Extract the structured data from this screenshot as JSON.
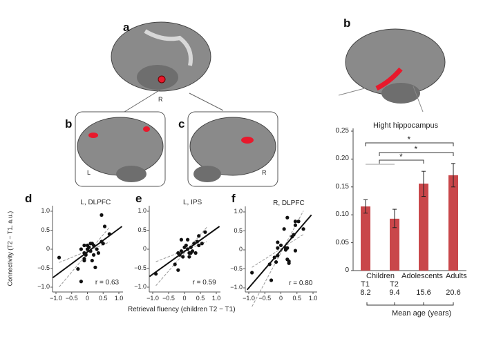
{
  "panel_labels": {
    "a": "a",
    "b": "b",
    "c": "c",
    "d": "d",
    "e": "e",
    "f": "f",
    "b_right": "b"
  },
  "brain_labels": {
    "a_side": "R",
    "b_side": "L",
    "c_side": "R"
  },
  "colors": {
    "bar": "#c9474a",
    "activation": "#e8192c",
    "brain": "#8a8a8a"
  },
  "shared_ylabel": "Connectivity (T2 − T1, a.u.)",
  "shared_xlabel": "Retrieval fluency (children T2 − T1)",
  "chart_data": [
    {
      "type": "scatter",
      "title": "L, DLPFC",
      "annotation": "r = 0.63",
      "xlim": [
        -1.0,
        1.0
      ],
      "ylim": [
        -1.0,
        1.0
      ],
      "xticks": [
        "−1.0",
        "−0.5",
        "0",
        "0.5",
        "1.0"
      ],
      "yticks": [
        "1.0",
        "0.5",
        "0",
        "−0.5",
        "−1.0"
      ],
      "points": [
        [
          -0.9,
          -0.22
        ],
        [
          -0.2,
          0.0
        ],
        [
          -0.1,
          0.1
        ],
        [
          0.0,
          0.1
        ],
        [
          0.05,
          0.05
        ],
        [
          -0.1,
          -0.1
        ],
        [
          -0.05,
          -0.15
        ],
        [
          0.15,
          0.15
        ],
        [
          0.2,
          0.1
        ],
        [
          0.1,
          -0.05
        ],
        [
          0.2,
          -0.15
        ],
        [
          -0.1,
          -0.3
        ],
        [
          -0.1,
          -0.25
        ],
        [
          0.15,
          -0.3
        ],
        [
          0.3,
          0.0
        ],
        [
          0.35,
          -0.1
        ],
        [
          0.45,
          0.2
        ],
        [
          0.5,
          0.15
        ],
        [
          0.45,
          0.9
        ],
        [
          0.55,
          0.6
        ],
        [
          0.7,
          0.4
        ],
        [
          -0.3,
          -0.52
        ],
        [
          -0.2,
          -0.85
        ],
        [
          0.25,
          -0.48
        ],
        [
          0.0,
          0.0
        ],
        [
          0.1,
          0.15
        ]
      ],
      "fit": [
        [
          -1.1,
          -0.75
        ],
        [
          1.1,
          0.6
        ]
      ]
    },
    {
      "type": "scatter",
      "title": "L, IPS",
      "annotation": "r = 0.59",
      "xlim": [
        -1.0,
        1.0
      ],
      "ylim": [
        -1.0,
        1.0
      ],
      "xticks": [
        "−1.0",
        "−0.5",
        "0",
        "0.5",
        "1.0"
      ],
      "yticks": [
        "1.0",
        "0.5",
        "0",
        "−0.5",
        "−1.0"
      ],
      "points": [
        [
          -0.9,
          -0.65
        ],
        [
          -0.3,
          -0.4
        ],
        [
          -0.2,
          -0.55
        ],
        [
          -0.2,
          -0.1
        ],
        [
          -0.15,
          -0.15
        ],
        [
          -0.1,
          0.25
        ],
        [
          -0.1,
          -0.05
        ],
        [
          0.0,
          0.05
        ],
        [
          0.05,
          0.1
        ],
        [
          0.1,
          0.25
        ],
        [
          0.1,
          0.0
        ],
        [
          0.15,
          -0.1
        ],
        [
          0.2,
          0.05
        ],
        [
          0.2,
          -0.1
        ],
        [
          0.25,
          -0.05
        ],
        [
          0.3,
          0.15
        ],
        [
          0.35,
          -0.1
        ],
        [
          0.4,
          0.2
        ],
        [
          0.45,
          0.35
        ],
        [
          0.45,
          0.1
        ],
        [
          0.55,
          0.15
        ],
        [
          0.65,
          0.45
        ],
        [
          0.15,
          -0.2
        ],
        [
          -0.05,
          -0.2
        ]
      ],
      "fit": [
        [
          -1.1,
          -0.72
        ],
        [
          1.1,
          0.6
        ]
      ]
    },
    {
      "type": "scatter",
      "title": "R, DLPFC",
      "annotation": "r = 0.80",
      "xlim": [
        -1.0,
        1.0
      ],
      "ylim": [
        -1.0,
        1.0
      ],
      "xticks": [
        "−1.0",
        "−0.5",
        "0",
        "0.5",
        "1.0"
      ],
      "yticks": [
        "1.0",
        "0.5",
        "0",
        "−0.5",
        "−1.0"
      ],
      "points": [
        [
          -0.9,
          -0.6
        ],
        [
          -0.35,
          -0.38
        ],
        [
          -0.3,
          -0.8
        ],
        [
          -0.2,
          -0.2
        ],
        [
          -0.15,
          -0.32
        ],
        [
          -0.1,
          -0.15
        ],
        [
          -0.1,
          0.05
        ],
        [
          -0.1,
          0.2
        ],
        [
          0.0,
          0.12
        ],
        [
          0.1,
          0.55
        ],
        [
          0.15,
          0.05
        ],
        [
          0.15,
          0.0
        ],
        [
          0.2,
          -0.25
        ],
        [
          0.25,
          -0.3
        ],
        [
          0.25,
          -0.35
        ],
        [
          0.2,
          0.85
        ],
        [
          0.35,
          0.35
        ],
        [
          0.4,
          0.4
        ],
        [
          0.45,
          0.65
        ],
        [
          0.45,
          0.75
        ],
        [
          0.45,
          -0.02
        ],
        [
          0.55,
          0.75
        ],
        [
          0.7,
          0.55
        ],
        [
          0.2,
          0.05
        ]
      ],
      "fit": [
        [
          -1.05,
          -1.05
        ],
        [
          0.95,
          0.92
        ]
      ]
    },
    {
      "type": "bar",
      "title": "Hight hippocampus",
      "ylim": [
        0,
        0.25
      ],
      "yticks": [
        "0.25",
        "0.20",
        "0.15",
        "0.10",
        "0.05",
        "0"
      ],
      "categories": [
        "Children T1",
        "Children T2",
        "Adolescents",
        "Adults"
      ],
      "group_labels": [
        "Children",
        "Adolescents",
        "Adults"
      ],
      "time_labels": [
        "T1",
        "T2"
      ],
      "values": [
        0.115,
        0.093,
        0.156,
        0.171
      ],
      "error_upper": [
        0.127,
        0.11,
        0.178,
        0.192
      ],
      "error_lower": [
        0.103,
        0.077,
        0.133,
        0.15
      ],
      "mean_age": [
        "8.2",
        "9.4",
        "15.6",
        "20.6"
      ],
      "xlabel": "Mean age (years)",
      "significance": [
        "*",
        "*",
        "*"
      ]
    }
  ]
}
